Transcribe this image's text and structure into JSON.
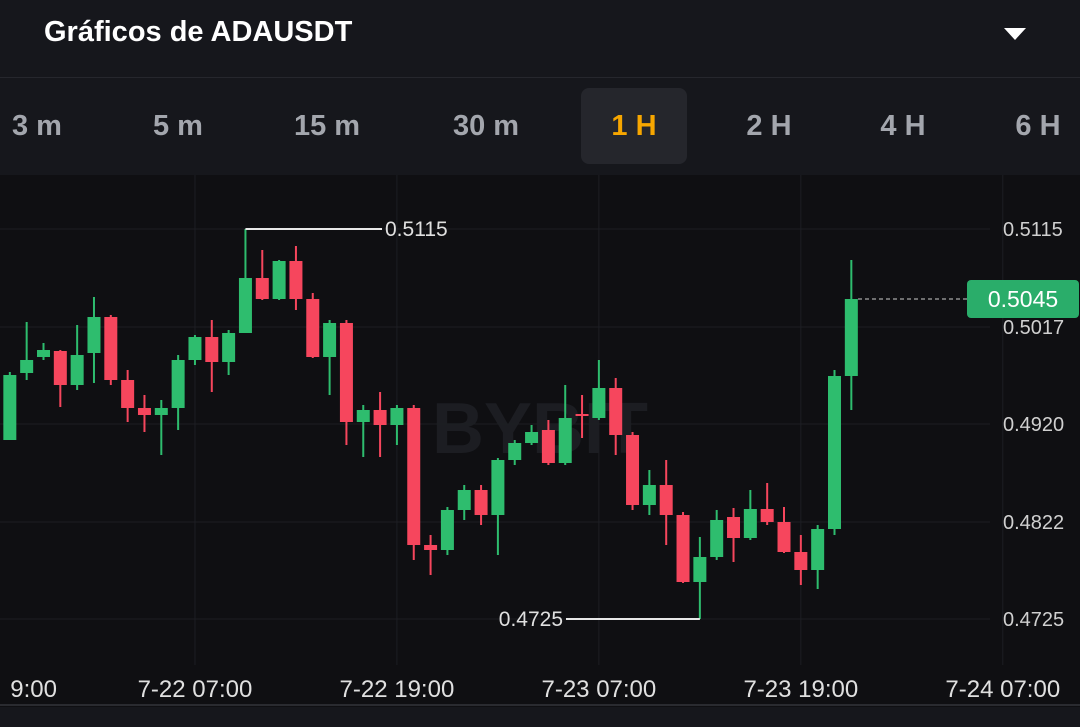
{
  "header": {
    "title": "Gráficos de ADAUSDT"
  },
  "tabs": {
    "items": [
      "3 m",
      "5 m",
      "15 m",
      "30 m",
      "1 H",
      "2 H",
      "4 H",
      "6 H"
    ],
    "selected": "1 H"
  },
  "chart_data": {
    "type": "candlestick",
    "watermark": "BYBIT",
    "categories": [
      "9:00",
      null,
      null,
      null,
      null,
      null,
      null,
      null,
      null,
      null,
      null,
      null,
      "7-22 07:00",
      null,
      null,
      null,
      null,
      null,
      null,
      null,
      null,
      null,
      null,
      null,
      "7-22 19:00",
      null,
      null,
      null,
      null,
      null,
      null,
      null,
      null,
      null,
      null,
      null,
      "7-23 07:00",
      null,
      null,
      null,
      null,
      null,
      null,
      null,
      null,
      null,
      null,
      null,
      "7-23 19:00",
      null,
      null,
      null,
      null,
      null,
      null,
      null,
      null,
      null,
      null,
      null,
      "7-24 07:00"
    ],
    "open": [
      null,
      0.4904,
      0.4971,
      0.4987,
      0.4993,
      0.4959,
      0.4991,
      0.5027,
      0.4964,
      0.4936,
      0.4929,
      0.4936,
      0.4984,
      0.5007,
      0.4982,
      0.5011,
      0.5066,
      0.5045,
      0.5083,
      0.5045,
      0.4987,
      0.5021,
      0.4922,
      0.4934,
      0.4919,
      0.4936,
      0.4799,
      0.4794,
      0.4834,
      0.4854,
      0.4829,
      0.4884,
      0.4901,
      0.4914,
      0.4881,
      0.493,
      0.4926,
      0.4956,
      0.4909,
      0.4839,
      0.4859,
      0.4829,
      0.4762,
      0.4787,
      0.4827,
      0.4806,
      0.4835,
      0.4822,
      0.4792,
      0.4774,
      0.4815,
      0.4968,
      null,
      null,
      null,
      null,
      null,
      null,
      null,
      null,
      null
    ],
    "high": [
      null,
      0.4972,
      0.5022,
      0.5001,
      0.4994,
      0.5019,
      0.5047,
      0.5029,
      0.4974,
      0.4949,
      0.4944,
      0.4989,
      0.5009,
      0.5024,
      0.5014,
      0.5115,
      0.5094,
      0.5084,
      0.5098,
      0.5051,
      0.5024,
      0.5024,
      0.4939,
      0.4952,
      0.4939,
      0.4939,
      0.4809,
      0.4837,
      0.4859,
      0.4859,
      0.4886,
      0.4904,
      0.4919,
      0.4924,
      0.4959,
      0.4949,
      0.4984,
      0.4966,
      0.4912,
      0.4874,
      0.4884,
      0.4832,
      0.4807,
      0.4834,
      0.4836,
      0.4854,
      0.4861,
      0.4837,
      0.4809,
      0.4819,
      0.4974,
      0.5084,
      null,
      null,
      null,
      null,
      null,
      null,
      null,
      null,
      null
    ],
    "low": [
      null,
      0.4904,
      0.4964,
      0.4984,
      0.4937,
      0.4954,
      0.4961,
      0.4959,
      0.4922,
      0.4912,
      0.4889,
      0.4914,
      0.4979,
      0.4952,
      0.4969,
      0.5011,
      0.5044,
      0.5044,
      0.5034,
      0.4986,
      0.4949,
      0.4899,
      0.4887,
      0.4887,
      0.4899,
      0.4784,
      0.4769,
      0.4789,
      0.4824,
      0.4819,
      0.4789,
      0.4879,
      0.4899,
      0.4879,
      0.4879,
      0.4906,
      0.4924,
      0.4889,
      0.4834,
      0.4829,
      0.4799,
      0.4761,
      0.4725,
      0.4784,
      0.4782,
      0.4804,
      0.4819,
      0.4791,
      0.4759,
      0.4755,
      0.4809,
      0.4934,
      null,
      null,
      null,
      null,
      null,
      null,
      null,
      null,
      null
    ],
    "close": [
      null,
      0.4969,
      0.4984,
      0.4994,
      0.4959,
      0.4989,
      0.5027,
      0.4964,
      0.4936,
      0.4929,
      0.4936,
      0.4984,
      0.5007,
      0.4982,
      0.5011,
      0.5066,
      0.5045,
      0.5083,
      0.5045,
      0.4987,
      0.5021,
      0.4922,
      0.4934,
      0.4919,
      0.4936,
      0.4799,
      0.4794,
      0.4834,
      0.4854,
      0.4829,
      0.4884,
      0.4901,
      0.4912,
      0.4881,
      0.4926,
      0.4928,
      0.4956,
      0.4909,
      0.4839,
      0.4859,
      0.4829,
      0.4762,
      0.4787,
      0.4824,
      0.4806,
      0.4835,
      0.4822,
      0.4792,
      0.4774,
      0.4815,
      0.4968,
      0.5045,
      null,
      null,
      null,
      null,
      null,
      null,
      null,
      null,
      null
    ],
    "up_color": "#2ebd6e",
    "down_color": "#f6465d",
    "ylim": [
      0.4679,
      0.5169
    ],
    "yticks": [
      0.5115,
      0.5017,
      {
        "value": 0.492,
        "label": "0.4920"
      },
      0.4822,
      0.4725
    ],
    "grid": true,
    "max_marker": 0.5115,
    "min_marker": 0.4725,
    "last_price": 0.5045,
    "last_price_color": "#2aad6a"
  }
}
